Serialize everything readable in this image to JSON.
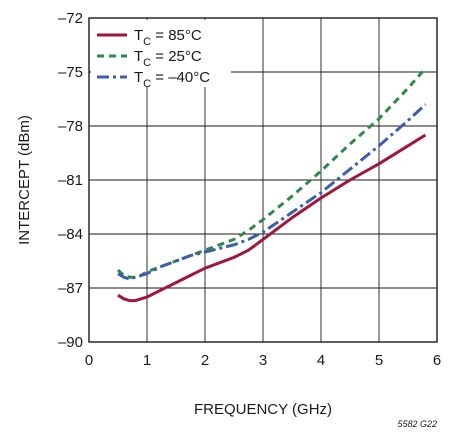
{
  "chart_data": {
    "type": "line",
    "title": "",
    "xlabel": "FREQUENCY (GHz)",
    "ylabel": "INTERCEPT (dBm)",
    "xlim": [
      0,
      6
    ],
    "ylim": [
      -90,
      -72
    ],
    "xticks": [
      0,
      1,
      2,
      3,
      4,
      5,
      6
    ],
    "xtick_labels": [
      "0",
      "1",
      "2",
      "3",
      "4",
      "5",
      "6"
    ],
    "yticks": [
      -90,
      -87,
      -84,
      -81,
      -78,
      -75,
      -72
    ],
    "ytick_labels": [
      "–90",
      "–87",
      "–84",
      "–81",
      "–78",
      "–75",
      "–72"
    ],
    "grid": true,
    "legend_position": "top-left",
    "figure_id": "5582 G22",
    "series": [
      {
        "name_main": "T",
        "name_sub": "C",
        "name_rest": " = 85°C",
        "color": "#a0163c",
        "dash": "solid",
        "x": [
          0.5,
          0.6,
          0.7,
          0.8,
          0.9,
          1.0,
          1.25,
          1.5,
          1.75,
          2.0,
          2.25,
          2.5,
          2.75,
          3.0,
          3.5,
          4.0,
          4.5,
          5.0,
          5.5,
          5.8
        ],
        "y": [
          -87.4,
          -87.6,
          -87.7,
          -87.7,
          -87.6,
          -87.5,
          -87.1,
          -86.7,
          -86.3,
          -85.9,
          -85.6,
          -85.3,
          -84.9,
          -84.3,
          -83.1,
          -82.0,
          -81.0,
          -80.1,
          -79.1,
          -78.5
        ]
      },
      {
        "name_main": "T",
        "name_sub": "C",
        "name_rest": " = 25°C",
        "color": "#2f8a4a",
        "dash": "7,5",
        "x": [
          0.5,
          0.6,
          0.7,
          0.8,
          0.9,
          1.0,
          1.25,
          1.5,
          1.75,
          2.0,
          2.25,
          2.5,
          2.75,
          3.0,
          3.5,
          4.0,
          4.5,
          5.0,
          5.5,
          5.8
        ],
        "y": [
          -86.0,
          -86.3,
          -86.4,
          -86.4,
          -86.3,
          -86.1,
          -85.8,
          -85.5,
          -85.2,
          -84.9,
          -84.6,
          -84.3,
          -83.8,
          -83.2,
          -81.9,
          -80.5,
          -79.0,
          -77.6,
          -75.9,
          -74.8
        ]
      },
      {
        "name_main": "T",
        "name_sub": "C",
        "name_rest": " = –40°C",
        "color": "#3a5fae",
        "dash": "12,4,3,4",
        "x": [
          0.5,
          0.6,
          0.7,
          0.8,
          0.9,
          1.0,
          1.25,
          1.5,
          1.75,
          2.0,
          2.25,
          2.5,
          2.75,
          3.0,
          3.5,
          4.0,
          4.5,
          5.0,
          5.5,
          5.8
        ],
        "y": [
          -86.2,
          -86.4,
          -86.5,
          -86.4,
          -86.3,
          -86.2,
          -85.8,
          -85.5,
          -85.2,
          -85.0,
          -84.8,
          -84.6,
          -84.3,
          -83.9,
          -82.8,
          -81.7,
          -80.4,
          -79.1,
          -77.7,
          -76.8
        ]
      }
    ]
  }
}
